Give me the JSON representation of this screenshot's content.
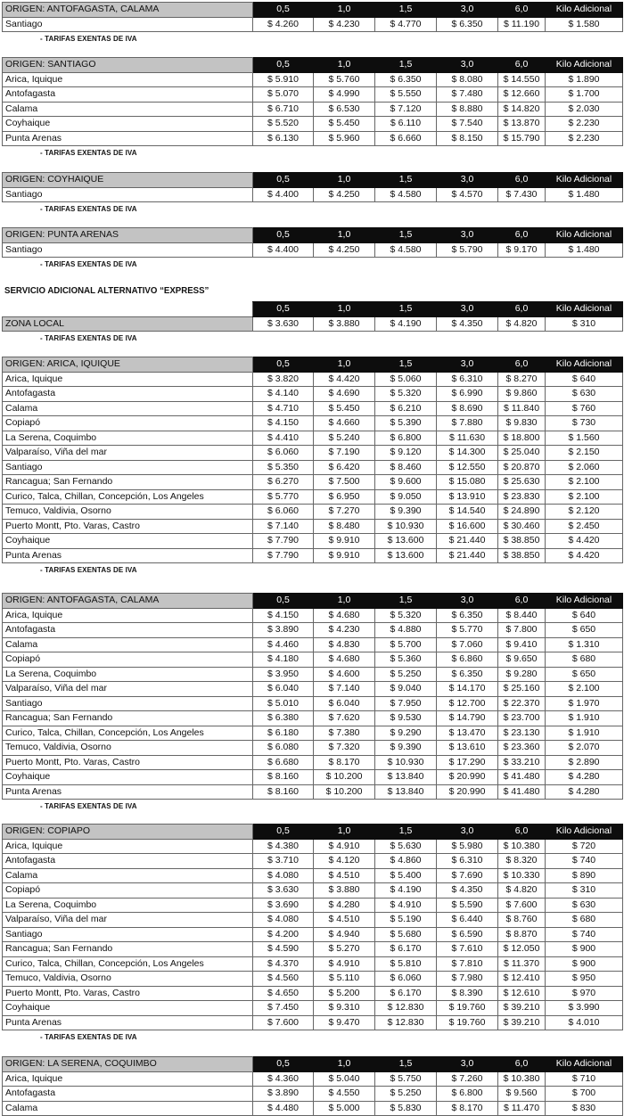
{
  "columns": [
    "0,5",
    "1,0",
    "1,5",
    "3,0",
    "6,0",
    "Kilo Adicional"
  ],
  "note": "- TARIFAS EXENTAS DE IVA",
  "express_title": "SERVICIO ADICIONAL ALTERNATIVO “EXPRESS”",
  "sections": [
    {
      "origin": "ORIGEN: ANTOFAGASTA, CALAMA",
      "rows": [
        {
          "dest": "Santiago",
          "prices": [
            "$ 4.260",
            "$ 4.230",
            "$ 4.770",
            "$ 6.350",
            "$ 11.190",
            "$ 1.580"
          ]
        }
      ]
    },
    {
      "origin": "ORIGEN: SANTIAGO",
      "rows": [
        {
          "dest": "Arica, Iquique",
          "prices": [
            "$ 5.910",
            "$ 5.760",
            "$ 6.350",
            "$ 8.080",
            "$ 14.550",
            "$ 1.890"
          ]
        },
        {
          "dest": "Antofagasta",
          "prices": [
            "$ 5.070",
            "$ 4.990",
            "$ 5.550",
            "$ 7.480",
            "$ 12.660",
            "$ 1.700"
          ]
        },
        {
          "dest": "Calama",
          "prices": [
            "$ 6.710",
            "$ 6.530",
            "$ 7.120",
            "$ 8.880",
            "$ 14.820",
            "$ 2.030"
          ]
        },
        {
          "dest": "Coyhaique",
          "prices": [
            "$ 5.520",
            "$ 5.450",
            "$ 6.110",
            "$ 7.540",
            "$ 13.870",
            "$ 2.230"
          ]
        },
        {
          "dest": "Punta Arenas",
          "prices": [
            "$ 6.130",
            "$ 5.960",
            "$ 6.660",
            "$ 8.150",
            "$ 15.790",
            "$ 2.230"
          ]
        }
      ]
    },
    {
      "origin": "ORIGEN: COYHAIQUE",
      "rows": [
        {
          "dest": "Santiago",
          "prices": [
            "$ 4.400",
            "$ 4.250",
            "$ 4.580",
            "$ 4.570",
            "$ 7.430",
            "$ 1.480"
          ]
        }
      ]
    },
    {
      "origin": "ORIGEN: PUNTA ARENAS",
      "rows": [
        {
          "dest": "Santiago",
          "prices": [
            "$ 4.400",
            "$ 4.250",
            "$ 4.580",
            "$ 5.790",
            "$ 9.170",
            "$ 1.480"
          ]
        }
      ]
    },
    {
      "origin": "",
      "rows": [
        {
          "dest": "ZONA LOCAL",
          "prices": [
            "$ 3.630",
            "$ 3.880",
            "$ 4.190",
            "$ 4.350",
            "$ 4.820",
            "$ 310"
          ]
        }
      ]
    },
    {
      "origin": "ORIGEN: ARICA, IQUIQUE",
      "rows": [
        {
          "dest": "Arica, Iquique",
          "prices": [
            "$ 3.820",
            "$ 4.420",
            "$ 5.060",
            "$ 6.310",
            "$ 8.270",
            "$ 640"
          ]
        },
        {
          "dest": "Antofagasta",
          "prices": [
            "$ 4.140",
            "$ 4.690",
            "$ 5.320",
            "$ 6.990",
            "$ 9.860",
            "$ 630"
          ]
        },
        {
          "dest": "Calama",
          "prices": [
            "$ 4.710",
            "$ 5.450",
            "$ 6.210",
            "$ 8.690",
            "$ 11.840",
            "$ 760"
          ]
        },
        {
          "dest": "Copiapó",
          "prices": [
            "$ 4.150",
            "$ 4.660",
            "$ 5.390",
            "$ 7.880",
            "$ 9.830",
            "$ 730"
          ]
        },
        {
          "dest": "La Serena, Coquimbo",
          "prices": [
            "$ 4.410",
            "$ 5.240",
            "$ 6.800",
            "$ 11.630",
            "$ 18.800",
            "$ 1.560"
          ]
        },
        {
          "dest": "Valparaíso, Viña del mar",
          "prices": [
            "$ 6.060",
            "$ 7.190",
            "$ 9.120",
            "$ 14.300",
            "$ 25.040",
            "$ 2.150"
          ]
        },
        {
          "dest": "Santiago",
          "prices": [
            "$ 5.350",
            "$ 6.420",
            "$ 8.460",
            "$ 12.550",
            "$ 20.870",
            "$ 2.060"
          ]
        },
        {
          "dest": "Rancagua; San Fernando",
          "prices": [
            "$ 6.270",
            "$ 7.500",
            "$ 9.600",
            "$ 15.080",
            "$ 25.630",
            "$ 2.100"
          ]
        },
        {
          "dest": "Curico, Talca, Chillan, Concepción, Los Angeles",
          "prices": [
            "$ 5.770",
            "$ 6.950",
            "$ 9.050",
            "$ 13.910",
            "$ 23.830",
            "$ 2.100"
          ]
        },
        {
          "dest": "Temuco, Valdivia, Osorno",
          "prices": [
            "$ 6.060",
            "$ 7.270",
            "$ 9.390",
            "$ 14.540",
            "$ 24.890",
            "$ 2.120"
          ]
        },
        {
          "dest": "Puerto Montt, Pto. Varas, Castro",
          "prices": [
            "$ 7.140",
            "$ 8.480",
            "$ 10.930",
            "$ 16.600",
            "$ 30.460",
            "$ 2.450"
          ]
        },
        {
          "dest": "Coyhaique",
          "prices": [
            "$ 7.790",
            "$ 9.910",
            "$ 13.600",
            "$ 21.440",
            "$ 38.850",
            "$ 4.420"
          ]
        },
        {
          "dest": "Punta Arenas",
          "prices": [
            "$ 7.790",
            "$ 9.910",
            "$ 13.600",
            "$ 21.440",
            "$ 38.850",
            "$ 4.420"
          ]
        }
      ]
    },
    {
      "origin": "ORIGEN: ANTOFAGASTA, CALAMA",
      "rows": [
        {
          "dest": "Arica, Iquique",
          "prices": [
            "$ 4.150",
            "$ 4.680",
            "$ 5.320",
            "$ 6.350",
            "$ 8.440",
            "$ 640"
          ]
        },
        {
          "dest": "Antofagasta",
          "prices": [
            "$ 3.890",
            "$ 4.230",
            "$ 4.880",
            "$ 5.770",
            "$ 7.800",
            "$ 650"
          ]
        },
        {
          "dest": "Calama",
          "prices": [
            "$ 4.460",
            "$ 4.830",
            "$ 5.700",
            "$ 7.060",
            "$ 9.410",
            "$ 1.310"
          ]
        },
        {
          "dest": "Copiapó",
          "prices": [
            "$ 4.180",
            "$ 4.680",
            "$ 5.360",
            "$ 6.860",
            "$ 9.650",
            "$ 680"
          ]
        },
        {
          "dest": "La Serena, Coquimbo",
          "prices": [
            "$ 3.950",
            "$ 4.600",
            "$ 5.250",
            "$ 6.350",
            "$ 9.280",
            "$ 650"
          ]
        },
        {
          "dest": "Valparaíso, Viña del mar",
          "prices": [
            "$ 6.040",
            "$ 7.140",
            "$ 9.040",
            "$ 14.170",
            "$ 25.160",
            "$ 2.100"
          ]
        },
        {
          "dest": "Santiago",
          "prices": [
            "$ 5.010",
            "$ 6.040",
            "$ 7.950",
            "$ 12.700",
            "$ 22.370",
            "$ 1.970"
          ]
        },
        {
          "dest": "Rancagua; San Fernando",
          "prices": [
            "$ 6.380",
            "$ 7.620",
            "$ 9.530",
            "$ 14.790",
            "$ 23.700",
            "$ 1.910"
          ]
        },
        {
          "dest": "Curico, Talca, Chillan, Concepción, Los Angeles",
          "prices": [
            "$ 6.180",
            "$ 7.380",
            "$ 9.290",
            "$ 13.470",
            "$ 23.130",
            "$ 1.910"
          ]
        },
        {
          "dest": "Temuco, Valdivia, Osorno",
          "prices": [
            "$ 6.080",
            "$ 7.320",
            "$ 9.390",
            "$ 13.610",
            "$ 23.360",
            "$ 2.070"
          ]
        },
        {
          "dest": "Puerto Montt, Pto. Varas, Castro",
          "prices": [
            "$ 6.680",
            "$ 8.170",
            "$ 10.930",
            "$ 17.290",
            "$ 33.210",
            "$ 2.890"
          ]
        },
        {
          "dest": "Coyhaique",
          "prices": [
            "$ 8.160",
            "$ 10.200",
            "$ 13.840",
            "$ 20.990",
            "$ 41.480",
            "$ 4.280"
          ]
        },
        {
          "dest": "Punta Arenas",
          "prices": [
            "$ 8.160",
            "$ 10.200",
            "$ 13.840",
            "$ 20.990",
            "$ 41.480",
            "$ 4.280"
          ]
        }
      ]
    },
    {
      "origin": "ORIGEN: COPIAPO",
      "rows": [
        {
          "dest": "Arica, Iquique",
          "prices": [
            "$ 4.380",
            "$ 4.910",
            "$ 5.630",
            "$ 5.980",
            "$ 10.380",
            "$ 720"
          ]
        },
        {
          "dest": "Antofagasta",
          "prices": [
            "$ 3.710",
            "$ 4.120",
            "$ 4.860",
            "$ 6.310",
            "$ 8.320",
            "$ 740"
          ]
        },
        {
          "dest": "Calama",
          "prices": [
            "$ 4.080",
            "$ 4.510",
            "$ 5.400",
            "$ 7.690",
            "$ 10.330",
            "$ 890"
          ]
        },
        {
          "dest": "Copiapó",
          "prices": [
            "$ 3.630",
            "$ 3.880",
            "$ 4.190",
            "$ 4.350",
            "$ 4.820",
            "$ 310"
          ]
        },
        {
          "dest": "La Serena, Coquimbo",
          "prices": [
            "$ 3.690",
            "$ 4.280",
            "$ 4.910",
            "$ 5.590",
            "$ 7.600",
            "$ 630"
          ]
        },
        {
          "dest": "Valparaíso, Viña del mar",
          "prices": [
            "$ 4.080",
            "$ 4.510",
            "$ 5.190",
            "$ 6.440",
            "$ 8.760",
            "$ 680"
          ]
        },
        {
          "dest": "Santiago",
          "prices": [
            "$ 4.200",
            "$ 4.940",
            "$ 5.680",
            "$ 6.590",
            "$ 8.870",
            "$ 740"
          ]
        },
        {
          "dest": "Rancagua; San Fernando",
          "prices": [
            "$ 4.590",
            "$ 5.270",
            "$ 6.170",
            "$ 7.610",
            "$ 12.050",
            "$ 900"
          ]
        },
        {
          "dest": "Curico, Talca, Chillan, Concepción, Los Angeles",
          "prices": [
            "$ 4.370",
            "$ 4.910",
            "$ 5.810",
            "$ 7.810",
            "$ 11.370",
            "$ 900"
          ]
        },
        {
          "dest": "Temuco, Valdivia, Osorno",
          "prices": [
            "$ 4.560",
            "$ 5.110",
            "$ 6.060",
            "$ 7.980",
            "$ 12.410",
            "$ 950"
          ]
        },
        {
          "dest": "Puerto Montt, Pto. Varas, Castro",
          "prices": [
            "$ 4.650",
            "$ 5.200",
            "$ 6.170",
            "$ 8.390",
            "$ 12.610",
            "$ 970"
          ]
        },
        {
          "dest": "Coyhaique",
          "prices": [
            "$ 7.450",
            "$ 9.310",
            "$ 12.830",
            "$ 19.760",
            "$ 39.210",
            "$ 3.990"
          ]
        },
        {
          "dest": "Punta Arenas",
          "prices": [
            "$ 7.600",
            "$ 9.470",
            "$ 12.830",
            "$ 19.760",
            "$ 39.210",
            "$ 4.010"
          ]
        }
      ]
    },
    {
      "origin": "ORIGEN: LA SERENA, COQUIMBO",
      "rows": [
        {
          "dest": "Arica, Iquique",
          "prices": [
            "$ 4.360",
            "$ 5.040",
            "$ 5.750",
            "$ 7.260",
            "$ 10.380",
            "$ 710"
          ]
        },
        {
          "dest": "Antofagasta",
          "prices": [
            "$ 3.890",
            "$ 4.550",
            "$ 5.250",
            "$ 6.800",
            "$ 9.560",
            "$ 700"
          ]
        },
        {
          "dest": "Calama",
          "prices": [
            "$ 4.480",
            "$ 5.000",
            "$ 5.830",
            "$ 8.170",
            "$ 11.470",
            "$ 830"
          ]
        }
      ]
    }
  ]
}
